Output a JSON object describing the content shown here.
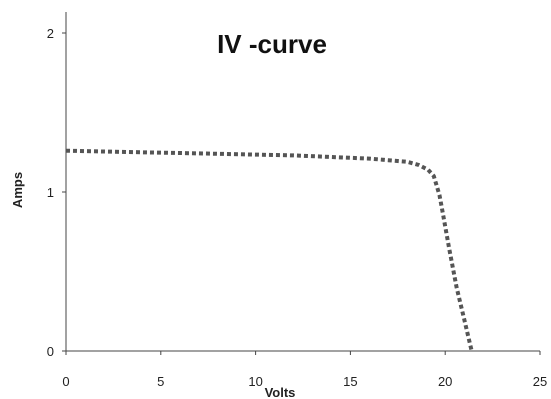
{
  "chart_data": {
    "type": "line",
    "title": "IV -curve",
    "xlabel": "Volts",
    "ylabel": "Amps",
    "xlim": [
      0,
      25
    ],
    "ylim": [
      0,
      2
    ],
    "xticks": [
      "0",
      "5",
      "10",
      "15",
      "20",
      "25"
    ],
    "yticks": [
      "0",
      "1",
      "2"
    ],
    "grid": false,
    "legend": "none",
    "series": [
      {
        "line_style": "dotted",
        "color": "#555555",
        "x": [
          0,
          2,
          4,
          6,
          8,
          10,
          12,
          14,
          15,
          16,
          17,
          18,
          18.6,
          19.1,
          19.4,
          19.7,
          19.9,
          20.2,
          20.6,
          21.0,
          21.3,
          21.4
        ],
        "y": [
          1.26,
          1.255,
          1.25,
          1.245,
          1.24,
          1.235,
          1.23,
          1.22,
          1.215,
          1.21,
          1.2,
          1.19,
          1.17,
          1.14,
          1.1,
          0.98,
          0.85,
          0.65,
          0.4,
          0.2,
          0.05,
          0.0
        ]
      }
    ]
  }
}
